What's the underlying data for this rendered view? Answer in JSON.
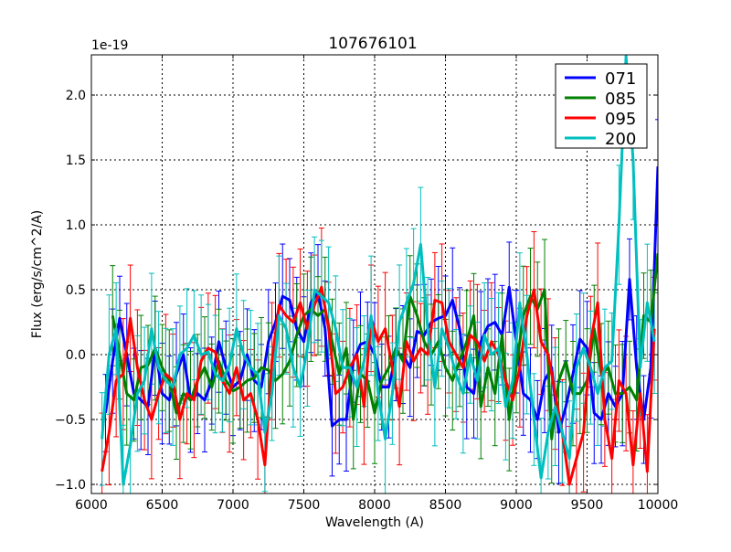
{
  "chart_data": {
    "type": "line",
    "title": "107676101",
    "xlabel": "Wavelength (A)",
    "ylabel": "Flux (erg/s/cm^2/A)",
    "y_offset_label": "1e-19",
    "xlim": [
      6000,
      10000
    ],
    "ylim": [
      -1.07,
      2.31
    ],
    "x_ticks": [
      6000,
      6500,
      7000,
      7500,
      8000,
      8500,
      9000,
      9500,
      10000
    ],
    "x_tick_labels": [
      "6000",
      "6500",
      "7000",
      "7500",
      "8000",
      "8500",
      "9000",
      "9500",
      "10000"
    ],
    "y_ticks": [
      -1.0,
      -0.5,
      0.0,
      0.5,
      1.0,
      1.5,
      2.0
    ],
    "y_tick_labels": [
      "−1.0",
      "−0.5",
      "0.0",
      "0.5",
      "1.0",
      "1.5",
      "2.0"
    ],
    "grid": true,
    "legend_position": "top-right",
    "series": [
      {
        "name": "071",
        "color": "#0000ff",
        "x_start": 6100,
        "x_step": 50,
        "err": 0.35,
        "values": [
          -0.45,
          -0.05,
          0.28,
          0.0,
          -0.3,
          -0.35,
          -0.4,
          0.05,
          -0.3,
          -0.35,
          -0.15,
          0.0,
          -0.35,
          -0.3,
          -0.35,
          -0.2,
          0.1,
          -0.1,
          -0.25,
          -0.2,
          0.0,
          -0.2,
          -0.25,
          0.1,
          0.25,
          0.45,
          0.42,
          0.2,
          0.1,
          0.4,
          0.48,
          0.2,
          -0.55,
          -0.5,
          -0.5,
          -0.05,
          0.08,
          0.1,
          0.0,
          -0.25,
          -0.25,
          0.0,
          0.0,
          -0.1,
          0.18,
          0.15,
          0.25,
          0.28,
          0.3,
          0.42,
          0.2,
          -0.25,
          -0.3,
          0.1,
          0.22,
          0.25,
          0.15,
          0.52,
          0.1,
          -0.3,
          -0.35,
          -0.5,
          -0.2,
          -0.1,
          -0.6,
          -0.4,
          -0.15,
          0.12,
          0.05,
          -0.45,
          -0.5,
          -0.3,
          -0.4,
          -0.3,
          0.58,
          -0.1,
          -0.5,
          -0.1,
          1.45
        ]
      },
      {
        "name": "085",
        "color": "#008000",
        "x_start": 6150,
        "x_step": 50,
        "err": 0.35,
        "values": [
          0.3,
          0.0,
          -0.3,
          -0.35,
          -0.1,
          -0.08,
          0.05,
          -0.1,
          -0.2,
          -0.45,
          -0.3,
          -0.35,
          -0.2,
          -0.1,
          -0.25,
          -0.05,
          -0.2,
          -0.28,
          -0.25,
          -0.2,
          -0.18,
          -0.1,
          -0.12,
          -0.2,
          -0.15,
          -0.05,
          0.15,
          0.3,
          0.35,
          0.3,
          0.35,
          0.1,
          -0.15,
          0.05,
          -0.5,
          -0.15,
          -0.2,
          -0.45,
          -0.2,
          -0.1,
          0.05,
          -0.05,
          0.45,
          0.3,
          0.1,
          0.0,
          0.1,
          -0.1,
          -0.2,
          -0.05,
          0.1,
          0.3,
          -0.4,
          -0.1,
          -0.3,
          0.15,
          -0.5,
          -0.1,
          0.3,
          0.45,
          0.35,
          0.5,
          -0.65,
          -0.2,
          -0.05,
          -0.3,
          -0.3,
          -0.2,
          0.2,
          -0.15,
          -0.1,
          -0.3,
          -0.3,
          -0.25,
          -0.35,
          0.3,
          0.25,
          0.78
        ]
      },
      {
        "name": "095",
        "color": "#ff0000",
        "x_start": 6075,
        "x_step": 50,
        "err": 0.4,
        "values": [
          -0.9,
          -0.6,
          -0.2,
          -0.15,
          0.28,
          -0.1,
          -0.35,
          -0.5,
          -0.3,
          -0.15,
          -0.2,
          -0.5,
          -0.3,
          -0.35,
          -0.05,
          0.05,
          0.02,
          -0.2,
          -0.3,
          -0.1,
          -0.35,
          -0.3,
          -0.5,
          -0.85,
          -0.05,
          0.38,
          0.3,
          0.25,
          0.4,
          0.2,
          0.38,
          0.52,
          0.2,
          -0.3,
          -0.25,
          -0.1,
          0.0,
          -0.4,
          0.28,
          0.1,
          0.2,
          -0.1,
          -0.4,
          0.1,
          -0.05,
          0.05,
          0.0,
          0.42,
          0.4,
          0.1,
          0.0,
          -0.1,
          0.15,
          0.1,
          -0.05,
          0.1,
          0.0,
          -0.2,
          -0.35,
          -0.1,
          0.3,
          0.5,
          0.1,
          0.0,
          -0.3,
          -0.6,
          -1.0,
          -0.8,
          -0.6,
          0.1,
          0.4,
          -0.5,
          -0.8,
          -0.2,
          -0.3,
          -0.85,
          -0.3,
          -0.9,
          0.2
        ]
      },
      {
        "name": "200",
        "color": "#00bfbf",
        "x_start": 6075,
        "x_step": 50,
        "err": 0.4,
        "values": [
          -0.65,
          0.0,
          0.2,
          -1.0,
          -0.7,
          -0.3,
          -0.2,
          0.2,
          -0.1,
          -0.2,
          -0.25,
          0.0,
          0.05,
          0.15,
          0.0,
          0.02,
          -0.15,
          -0.2,
          -0.08,
          0.2,
          0.0,
          -0.1,
          -0.15,
          -0.6,
          -0.3,
          0.3,
          0.2,
          -0.1,
          -0.25,
          0.05,
          0.5,
          0.45,
          0.4,
          0.2,
          -0.1,
          -0.1,
          -0.25,
          -0.05,
          0.3,
          -0.3,
          -0.65,
          -0.3,
          0.25,
          0.4,
          0.55,
          0.85,
          0.2,
          -0.25,
          0.2,
          0.05,
          -0.15,
          -0.3,
          0.0,
          -0.2,
          0.15,
          0.0,
          0.05,
          -0.4,
          -0.2,
          0.4,
          0.0,
          -0.5,
          -0.95,
          -0.6,
          -0.4,
          -0.6,
          -0.8,
          -0.1,
          0.05,
          -0.1,
          -0.3,
          -0.1,
          -0.05,
          1.0,
          2.3,
          1.5,
          -0.1,
          0.4,
          0.1
        ]
      }
    ]
  }
}
